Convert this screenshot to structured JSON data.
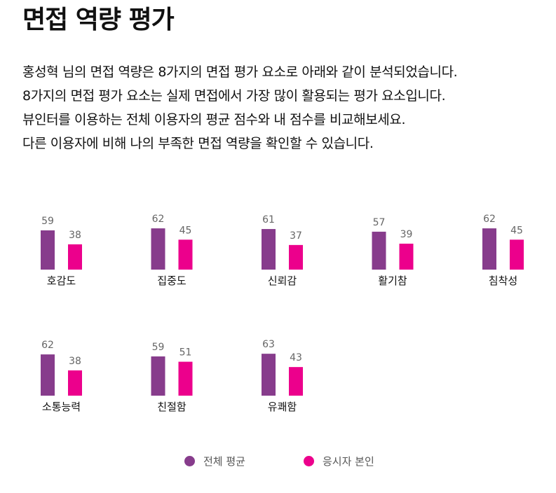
{
  "page": {
    "title": "면접 역량 평가",
    "description": [
      "홍성혁 님의 면접 역량은 8가지의 면접 평가 요소로 아래와 같이 분석되었습니다.",
      "8가지의 면접 평가 요소는 실제 면접에서 가장 많이 활용되는 평가 요소입니다.",
      "뷰인터를 이용하는 전체 이용자의 평균 점수와 내 점수를 비교해보세요.",
      "다른 이용자에 비해 나의 부족한 면접 역량을 확인할 수 있습니다."
    ]
  },
  "colors": {
    "average": "#873c8c",
    "self": "#ec008c",
    "value_label": "#666666"
  },
  "chart_data": {
    "type": "bar",
    "categories": [
      "호감도",
      "집중도",
      "신뢰감",
      "활기참",
      "침착성",
      "소통능력",
      "친절함",
      "유쾌함"
    ],
    "series": [
      {
        "name": "전체 평균",
        "values": [
          59,
          62,
          61,
          57,
          62,
          62,
          59,
          63
        ]
      },
      {
        "name": "응시자 본인",
        "values": [
          38,
          45,
          37,
          39,
          45,
          38,
          51,
          43
        ]
      }
    ],
    "ylim": [
      0,
      100
    ],
    "grid": false,
    "legend": "bottom-center"
  },
  "legend": {
    "average_label": "전체 평균",
    "self_label": "응시자 본인"
  }
}
